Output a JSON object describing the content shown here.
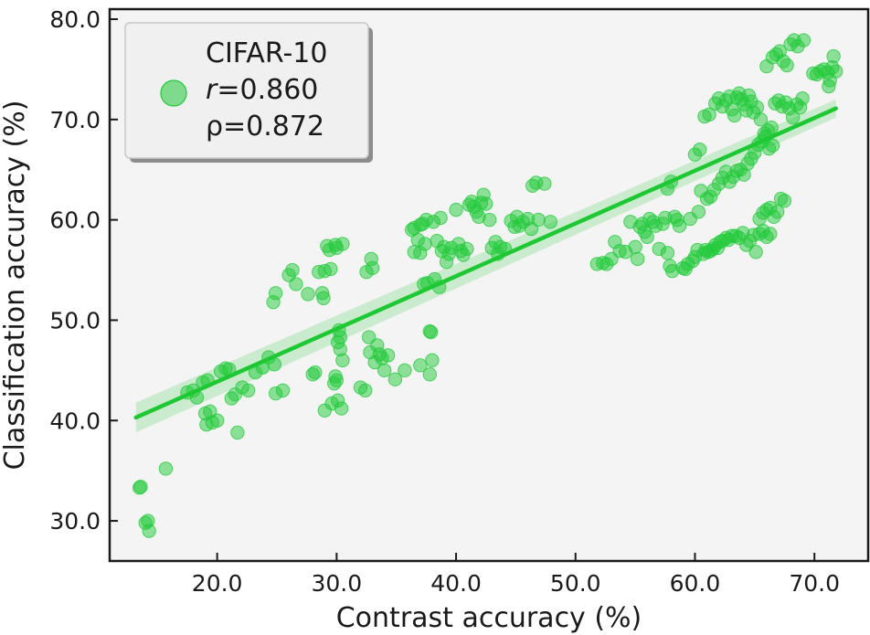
{
  "chart_data": {
    "type": "scatter",
    "title": "",
    "xlabel": "Contrast accuracy (%)",
    "ylabel": "Classification accuracy (%)",
    "xlim": [
      11,
      74.5
    ],
    "ylim": [
      26,
      81
    ],
    "xticks": [
      20,
      30,
      40,
      50,
      60,
      70
    ],
    "yticks": [
      30,
      40,
      50,
      60,
      70,
      80
    ],
    "xtick_labels": [
      "20.0",
      "30.0",
      "40.0",
      "50.0",
      "60.0",
      "70.0"
    ],
    "ytick_labels": [
      "30.0",
      "40.0",
      "50.0",
      "60.0",
      "70.0",
      "80.0"
    ],
    "grid": false,
    "legend_position": "top-left",
    "colors": {
      "points": "#22c93a",
      "line": "#1ec832",
      "band": "#7fd98a",
      "panel": "#f4f4f4"
    },
    "series": [
      {
        "name": "CIFAR-10",
        "legend_lines": [
          "CIFAR-10",
          "=0.860",
          "ρ=0.872"
        ],
        "legend_r_symbol": "r",
        "points": [
          [
            13.5,
            33.3
          ],
          [
            14.0,
            29.8
          ],
          [
            14.3,
            29.0
          ],
          [
            14.2,
            30.0
          ],
          [
            13.6,
            33.4
          ],
          [
            15.7,
            35.2
          ],
          [
            17.5,
            42.8
          ],
          [
            18.0,
            43.0
          ],
          [
            18.3,
            42.3
          ],
          [
            18.8,
            43.8
          ],
          [
            19.2,
            44.0
          ],
          [
            19.0,
            40.7
          ],
          [
            19.4,
            40.9
          ],
          [
            19.6,
            39.8
          ],
          [
            19.1,
            39.6
          ],
          [
            20.0,
            40.0
          ],
          [
            20.3,
            44.9
          ],
          [
            20.7,
            45.2
          ],
          [
            21.0,
            45.1
          ],
          [
            21.2,
            42.2
          ],
          [
            21.5,
            42.6
          ],
          [
            21.7,
            38.8
          ],
          [
            22.1,
            43.3
          ],
          [
            22.6,
            43.0
          ],
          [
            23.2,
            44.8
          ],
          [
            23.8,
            45.3
          ],
          [
            24.3,
            46.3
          ],
          [
            24.8,
            45.6
          ],
          [
            24.9,
            42.7
          ],
          [
            25.5,
            43.0
          ],
          [
            24.7,
            51.8
          ],
          [
            24.9,
            52.7
          ],
          [
            26.0,
            54.5
          ],
          [
            26.3,
            55.0
          ],
          [
            26.6,
            53.6
          ],
          [
            27.6,
            52.6
          ],
          [
            28.0,
            44.6
          ],
          [
            28.2,
            44.8
          ],
          [
            28.5,
            54.8
          ],
          [
            28.8,
            52.7
          ],
          [
            28.9,
            52.2
          ],
          [
            29.0,
            54.9
          ],
          [
            29.0,
            41.0
          ],
          [
            29.2,
            57.4
          ],
          [
            29.4,
            57.0
          ],
          [
            29.5,
            55.1
          ],
          [
            29.6,
            41.7
          ],
          [
            29.8,
            43.7
          ],
          [
            29.9,
            44.4
          ],
          [
            29.9,
            57.5
          ],
          [
            30.0,
            57.2
          ],
          [
            30.1,
            47.8
          ],
          [
            30.2,
            49.0
          ],
          [
            30.3,
            48.3
          ],
          [
            30.4,
            41.2
          ],
          [
            30.5,
            46.0
          ],
          [
            30.5,
            57.6
          ],
          [
            30.1,
            42.0
          ],
          [
            30.0,
            44.0
          ],
          [
            30.3,
            47.1
          ],
          [
            32.0,
            43.3
          ],
          [
            32.4,
            43.0
          ],
          [
            32.5,
            54.8
          ],
          [
            32.7,
            48.3
          ],
          [
            32.8,
            46.8
          ],
          [
            32.9,
            56.1
          ],
          [
            33.0,
            55.2
          ],
          [
            33.2,
            45.8
          ],
          [
            33.4,
            47.5
          ],
          [
            33.6,
            46.6
          ],
          [
            33.8,
            46.2
          ],
          [
            34.0,
            45.0
          ],
          [
            34.3,
            46.5
          ],
          [
            34.9,
            44.1
          ],
          [
            35.7,
            45.0
          ],
          [
            36.3,
            59.0
          ],
          [
            36.5,
            59.2
          ],
          [
            36.8,
            58.0
          ],
          [
            37.0,
            59.5
          ],
          [
            37.2,
            59.6
          ],
          [
            37.4,
            57.6
          ],
          [
            37.5,
            60.0
          ],
          [
            37.0,
            56.7
          ],
          [
            37.3,
            53.6
          ],
          [
            37.6,
            53.7
          ],
          [
            37.8,
            44.6
          ],
          [
            37.9,
            48.8
          ],
          [
            38.1,
            59.8
          ],
          [
            38.2,
            54.1
          ],
          [
            38.4,
            57.9
          ],
          [
            38.6,
            53.3
          ],
          [
            38.7,
            60.2
          ],
          [
            38.8,
            56.9
          ],
          [
            39.0,
            57.3
          ],
          [
            39.2,
            55.8
          ],
          [
            39.4,
            56.6
          ],
          [
            39.6,
            57.2
          ],
          [
            40.0,
            61.0
          ],
          [
            40.2,
            57.6
          ],
          [
            40.4,
            56.9
          ],
          [
            40.6,
            56.5
          ],
          [
            40.9,
            57.1
          ],
          [
            41.1,
            61.5
          ],
          [
            41.3,
            61.8
          ],
          [
            41.5,
            61.3
          ],
          [
            41.7,
            60.8
          ],
          [
            41.9,
            60.3
          ],
          [
            42.1,
            61.7
          ],
          [
            42.3,
            62.5
          ],
          [
            42.5,
            61.6
          ],
          [
            42.8,
            60.0
          ],
          [
            43.0,
            57.2
          ],
          [
            43.3,
            57.8
          ],
          [
            43.5,
            56.6
          ],
          [
            43.7,
            57.3
          ],
          [
            44.1,
            57.1
          ],
          [
            44.6,
            59.9
          ],
          [
            44.9,
            59.3
          ],
          [
            45.1,
            60.3
          ],
          [
            45.3,
            59.4
          ],
          [
            45.6,
            59.8
          ],
          [
            46.0,
            60.1
          ],
          [
            46.3,
            59.1
          ],
          [
            46.4,
            63.4
          ],
          [
            46.7,
            63.7
          ],
          [
            46.9,
            60.0
          ],
          [
            47.4,
            63.6
          ],
          [
            47.9,
            59.8
          ],
          [
            37.0,
            45.5
          ],
          [
            38.0,
            46.0
          ],
          [
            37.8,
            48.9
          ],
          [
            36.5,
            56.8
          ],
          [
            51.8,
            55.6
          ],
          [
            52.3,
            55.7
          ],
          [
            52.6,
            55.6
          ],
          [
            53.0,
            56.1
          ],
          [
            53.3,
            57.8
          ],
          [
            53.7,
            56.9
          ],
          [
            54.2,
            56.8
          ],
          [
            54.6,
            59.8
          ],
          [
            55.0,
            57.3
          ],
          [
            55.2,
            56.1
          ],
          [
            55.4,
            59.3
          ],
          [
            55.6,
            59.6
          ],
          [
            55.8,
            58.8
          ],
          [
            56.0,
            58.3
          ],
          [
            56.2,
            60.1
          ],
          [
            56.5,
            59.8
          ],
          [
            56.7,
            59.4
          ],
          [
            57.0,
            57.1
          ],
          [
            57.3,
            59.6
          ],
          [
            57.5,
            60.2
          ],
          [
            57.7,
            56.7
          ],
          [
            57.9,
            55.4
          ],
          [
            58.1,
            54.9
          ],
          [
            58.3,
            60.3
          ],
          [
            58.5,
            60.0
          ],
          [
            58.7,
            59.4
          ],
          [
            59.0,
            55.2
          ],
          [
            59.2,
            55.1
          ],
          [
            59.4,
            55.6
          ],
          [
            59.6,
            60.1
          ],
          [
            59.8,
            55.9
          ],
          [
            60.0,
            56.3
          ],
          [
            60.2,
            57.0
          ],
          [
            60.3,
            60.8
          ],
          [
            60.5,
            62.9
          ],
          [
            60.7,
            56.6
          ],
          [
            60.9,
            57.0
          ],
          [
            61.1,
            56.8
          ],
          [
            61.3,
            56.9
          ],
          [
            61.5,
            57.1
          ],
          [
            61.7,
            57.5
          ],
          [
            61.9,
            57.2
          ],
          [
            62.1,
            57.8
          ],
          [
            62.3,
            57.9
          ],
          [
            62.6,
            58.2
          ],
          [
            62.8,
            58.0
          ],
          [
            63.1,
            58.4
          ],
          [
            63.4,
            58.4
          ],
          [
            63.7,
            58.2
          ],
          [
            64.0,
            58.7
          ],
          [
            64.3,
            57.5
          ],
          [
            64.6,
            57.9
          ],
          [
            64.9,
            58.5
          ],
          [
            65.1,
            56.8
          ],
          [
            65.4,
            58.6
          ],
          [
            65.7,
            58.9
          ],
          [
            66.0,
            58.3
          ],
          [
            66.3,
            58.6
          ],
          [
            57.7,
            63.1
          ],
          [
            58.0,
            63.8
          ],
          [
            60.0,
            66.5
          ],
          [
            60.4,
            67.0
          ],
          [
            61.0,
            62.1
          ],
          [
            61.3,
            62.3
          ],
          [
            61.6,
            63.0
          ],
          [
            62.0,
            63.6
          ],
          [
            62.3,
            64.2
          ],
          [
            62.6,
            64.8
          ],
          [
            62.9,
            63.8
          ],
          [
            63.2,
            64.3
          ],
          [
            63.5,
            64.9
          ],
          [
            63.8,
            65.0
          ],
          [
            64.1,
            64.5
          ],
          [
            64.4,
            65.6
          ],
          [
            64.7,
            66.1
          ],
          [
            65.0,
            66.7
          ],
          [
            65.3,
            67.5
          ],
          [
            65.6,
            67.8
          ],
          [
            65.9,
            68.3
          ],
          [
            66.2,
            67.1
          ],
          [
            66.5,
            67.4
          ],
          [
            60.8,
            70.3
          ],
          [
            61.2,
            70.5
          ],
          [
            61.7,
            71.6
          ],
          [
            62.0,
            72.1
          ],
          [
            62.3,
            71.3
          ],
          [
            62.6,
            71.9
          ],
          [
            62.9,
            72.3
          ],
          [
            63.1,
            71.0
          ],
          [
            63.3,
            70.4
          ],
          [
            63.5,
            72.2
          ],
          [
            63.7,
            72.6
          ],
          [
            63.9,
            72.0
          ],
          [
            64.1,
            71.5
          ],
          [
            64.3,
            70.9
          ],
          [
            64.5,
            72.4
          ],
          [
            64.7,
            71.8
          ],
          [
            64.9,
            70.7
          ],
          [
            65.2,
            71.2
          ],
          [
            65.5,
            70.0
          ],
          [
            65.8,
            68.6
          ],
          [
            66.1,
            68.9
          ],
          [
            66.4,
            69.2
          ],
          [
            66.7,
            71.6
          ],
          [
            67.0,
            71.9
          ],
          [
            67.3,
            71.3
          ],
          [
            67.6,
            71.7
          ],
          [
            67.9,
            71.1
          ],
          [
            68.2,
            70.2
          ],
          [
            68.5,
            71.5
          ],
          [
            68.8,
            71.2
          ],
          [
            69.0,
            72.1
          ],
          [
            65.4,
            60.1
          ],
          [
            65.7,
            60.7
          ],
          [
            66.0,
            61.0
          ],
          [
            66.3,
            61.2
          ],
          [
            66.6,
            60.3
          ],
          [
            66.9,
            60.8
          ],
          [
            67.2,
            62.1
          ],
          [
            67.5,
            61.9
          ],
          [
            66.0,
            75.3
          ],
          [
            66.5,
            76.2
          ],
          [
            66.8,
            76.5
          ],
          [
            67.1,
            76.8
          ],
          [
            67.4,
            75.8
          ],
          [
            67.7,
            75.4
          ],
          [
            68.0,
            77.5
          ],
          [
            68.3,
            77.9
          ],
          [
            68.6,
            77.3
          ],
          [
            69.1,
            77.9
          ],
          [
            69.9,
            74.6
          ],
          [
            70.2,
            74.5
          ],
          [
            70.5,
            74.8
          ],
          [
            70.8,
            75.0
          ],
          [
            71.1,
            74.7
          ],
          [
            71.3,
            73.9
          ],
          [
            71.5,
            75.2
          ],
          [
            71.6,
            76.3
          ],
          [
            71.2,
            73.3
          ],
          [
            71.8,
            74.8
          ]
        ]
      }
    ],
    "regression": {
      "x": [
        13.2,
        71.8
      ],
      "y": [
        40.3,
        71.1
      ],
      "band_low": [
        38.8,
        70.2
      ],
      "band_high": [
        41.8,
        72.0
      ]
    }
  }
}
